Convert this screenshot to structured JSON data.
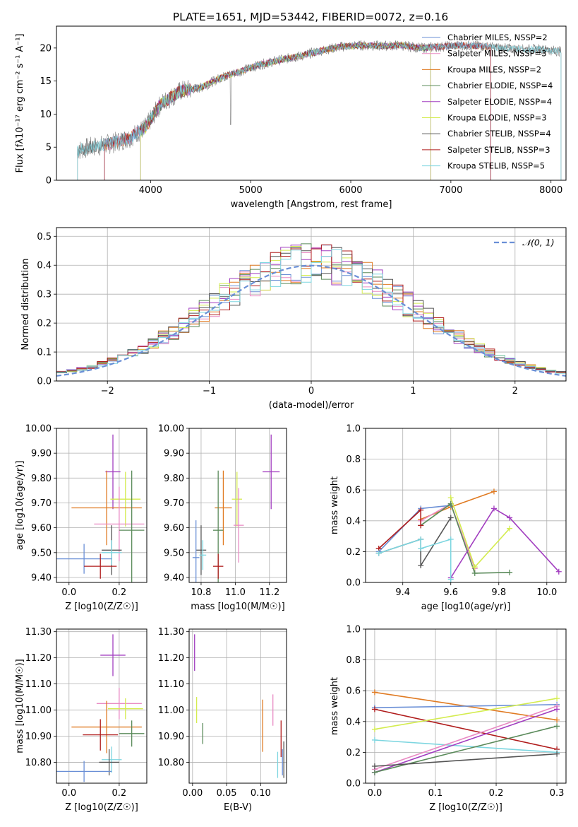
{
  "title": "PLATE=1651, MJD=53442, FIBERID=0072, z=0.16",
  "colors": {
    "chabrier_miles": "#6a8fd6",
    "salpeter_miles": "#e98bc4",
    "kroupa_miles": "#e07b23",
    "chabrier_elodie": "#5a8a5a",
    "salpeter_elodie": "#a23ec0",
    "kroupa_elodie": "#d4ec4f",
    "chabrier_stelib": "#555555",
    "salpeter_stelib": "#b01c1c",
    "kroupa_stelib": "#7dd6e0"
  },
  "chart_data": [
    {
      "id": "spectrum",
      "type": "line",
      "xlabel": "wavelength [Angstrom, rest frame]",
      "ylabel": "Flux [fλ10⁻¹⁷ erg cm⁻² s⁻¹ A⁻¹]",
      "xlim": [
        3060,
        8150
      ],
      "ylim": [
        0,
        23.3
      ],
      "xticks": [
        4000,
        5000,
        6000,
        7000,
        8000
      ],
      "yticks": [
        0,
        5,
        10,
        15,
        20
      ],
      "legend_position": "right",
      "legend": [
        {
          "label": "Chabrier MILES, NSSP=2",
          "color_key": "chabrier_miles"
        },
        {
          "label": "Salpeter MILES, NSSP=3",
          "color_key": "salpeter_miles"
        },
        {
          "label": "Kroupa MILES, NSSP=2",
          "color_key": "kroupa_miles"
        },
        {
          "label": "Chabrier ELODIE, NSSP=4",
          "color_key": "chabrier_elodie"
        },
        {
          "label": "Salpeter ELODIE, NSSP=4",
          "color_key": "salpeter_elodie"
        },
        {
          "label": "Kroupa ELODIE, NSSP=3",
          "color_key": "kroupa_elodie"
        },
        {
          "label": "Chabrier STELIB, NSSP=4",
          "color_key": "chabrier_stelib"
        },
        {
          "label": "Salpeter STELIB, NSSP=3",
          "color_key": "salpeter_stelib"
        },
        {
          "label": "Kroupa STELIB, NSSP=5",
          "color_key": "kroupa_stelib"
        }
      ],
      "continuum": [
        [
          3270,
          4.5
        ],
        [
          3400,
          5.0
        ],
        [
          3600,
          5.5
        ],
        [
          3800,
          6.5
        ],
        [
          3950,
          8.0
        ],
        [
          4100,
          11.5
        ],
        [
          4300,
          13.5
        ],
        [
          4500,
          14.0
        ],
        [
          4700,
          15.5
        ],
        [
          4900,
          16.5
        ],
        [
          5100,
          17.5
        ],
        [
          5300,
          18.2
        ],
        [
          5500,
          18.8
        ],
        [
          5700,
          19.6
        ],
        [
          5900,
          20.2
        ],
        [
          6100,
          20.4
        ],
        [
          6300,
          20.3
        ],
        [
          6500,
          20.4
        ],
        [
          6700,
          20.0
        ],
        [
          6900,
          20.2
        ],
        [
          7100,
          20.4
        ],
        [
          7300,
          20.3
        ],
        [
          7500,
          20.0
        ],
        [
          7700,
          19.8
        ],
        [
          7900,
          19.8
        ],
        [
          8100,
          19.5
        ]
      ],
      "spectrum_range": [
        3270,
        8100
      ],
      "model_ranges": [
        {
          "series": "kroupa_miles",
          "range": [
            3540,
            7400
          ]
        },
        {
          "series": "salpeter_miles",
          "range": [
            3540,
            7400
          ]
        },
        {
          "series": "chabrier_miles",
          "range": [
            3540,
            7400
          ]
        },
        {
          "series": "chabrier_elodie",
          "range": [
            3900,
            6800
          ]
        },
        {
          "series": "salpeter_elodie",
          "range": [
            3900,
            6800
          ]
        },
        {
          "series": "kroupa_elodie",
          "range": [
            3900,
            6800
          ]
        },
        {
          "series": "chabrier_stelib",
          "range": [
            3270,
            8100
          ]
        },
        {
          "series": "salpeter_stelib",
          "range": [
            3540,
            7400
          ]
        },
        {
          "series": "kroupa_stelib",
          "range": [
            3270,
            8100
          ]
        }
      ]
    },
    {
      "id": "residuals",
      "type": "line",
      "xlabel": "(data-model)/error",
      "ylabel": "Normed distribution",
      "xlim": [
        -2.5,
        2.5
      ],
      "ylim": [
        0,
        0.53
      ],
      "xticks": [
        -2,
        -1,
        0,
        1,
        2
      ],
      "yticks": [
        0.0,
        0.1,
        0.2,
        0.3,
        0.4,
        0.5
      ],
      "grid": true,
      "legend_position": "top-right",
      "legend": [
        {
          "label": "𝒩(0, 1)",
          "style": "dashed",
          "color_key": "chabrier_miles"
        }
      ],
      "bin_width": 0.1,
      "gaussian": {
        "mean": 0,
        "sigma": 1
      }
    },
    {
      "id": "age_vs_Z",
      "type": "scatter",
      "xlabel": "Z [log10(Z/Z☉)]",
      "ylabel": "age [log10(age/yr)]",
      "xlim": [
        -0.05,
        0.31
      ],
      "ylim": [
        9.38,
        10.0
      ],
      "xticks": [
        0.0,
        0.2
      ],
      "yticks": [
        9.4,
        9.5,
        9.6,
        9.7,
        9.8,
        9.9,
        10.0
      ],
      "grid": true,
      "points": [
        {
          "series": "salpeter_elodie",
          "x": 0.175,
          "y": 9.825,
          "xerr": 0.03,
          "yerr": 0.15
        },
        {
          "series": "kroupa_elodie",
          "x": 0.225,
          "y": 9.715,
          "xerr": 0.06,
          "yerr": 0.11
        },
        {
          "series": "kroupa_miles",
          "x": 0.15,
          "y": 9.68,
          "xerr": 0.14,
          "yerr": 0.15
        },
        {
          "series": "salpeter_miles",
          "x": 0.2,
          "y": 9.615,
          "xerr": 0.1,
          "yerr": 0.15
        },
        {
          "series": "chabrier_elodie",
          "x": 0.25,
          "y": 9.59,
          "xerr": 0.05,
          "yerr": 0.24
        },
        {
          "series": "chabrier_stelib",
          "x": 0.17,
          "y": 9.51,
          "xerr": 0.04,
          "yerr": 0.1
        },
        {
          "series": "kroupa_stelib",
          "x": 0.17,
          "y": 9.5,
          "xerr": 0.04,
          "yerr": 0.05
        },
        {
          "series": "chabrier_miles",
          "x": 0.06,
          "y": 9.475,
          "xerr": 0.11,
          "yerr": 0.06
        },
        {
          "series": "salpeter_stelib",
          "x": 0.125,
          "y": 9.445,
          "xerr": 0.065,
          "yerr": 0.05
        }
      ]
    },
    {
      "id": "age_vs_mass",
      "type": "scatter",
      "xlabel": "mass [log10(M/M☉)]",
      "ylabel": "",
      "xlim": [
        10.73,
        11.3
      ],
      "ylim": [
        9.38,
        10.0
      ],
      "xticks": [
        10.8,
        11.0,
        11.2
      ],
      "yticks": [
        9.4,
        9.5,
        9.6,
        9.7,
        9.8,
        9.9,
        10.0
      ],
      "grid": true,
      "points": [
        {
          "series": "salpeter_elodie",
          "x": 11.21,
          "y": 9.825,
          "xerr": 0.05,
          "yerr": 0.15
        },
        {
          "series": "kroupa_elodie",
          "x": 11.01,
          "y": 9.715,
          "xerr": 0.03,
          "yerr": 0.11
        },
        {
          "series": "kroupa_miles",
          "x": 10.93,
          "y": 9.68,
          "xerr": 0.05,
          "yerr": 0.15
        },
        {
          "series": "salpeter_miles",
          "x": 11.02,
          "y": 9.61,
          "xerr": 0.03,
          "yerr": 0.15
        },
        {
          "series": "chabrier_elodie",
          "x": 10.9,
          "y": 9.59,
          "xerr": 0.03,
          "yerr": 0.24
        },
        {
          "series": "chabrier_stelib",
          "x": 10.8,
          "y": 9.51,
          "xerr": 0.03,
          "yerr": 0.1
        },
        {
          "series": "kroupa_stelib",
          "x": 10.81,
          "y": 9.49,
          "xerr": 0.02,
          "yerr": 0.06
        },
        {
          "series": "chabrier_miles",
          "x": 10.77,
          "y": 9.48,
          "xerr": 0.02,
          "yerr": 0.15
        },
        {
          "series": "salpeter_stelib",
          "x": 10.9,
          "y": 9.445,
          "xerr": 0.03,
          "yerr": 0.05
        }
      ]
    },
    {
      "id": "weight_vs_age",
      "type": "line",
      "xlabel": "age [log10(age/yr)]",
      "ylabel": "mass weight",
      "xlim": [
        9.245,
        10.08
      ],
      "ylim": [
        0,
        1.0
      ],
      "xticks": [
        9.4,
        9.6,
        9.8,
        10.0
      ],
      "yticks": [
        0.0,
        0.2,
        0.4,
        0.6,
        0.8,
        1.0
      ],
      "grid": true,
      "series": [
        {
          "key": "kroupa_miles",
          "x": [
            9.475,
            9.6,
            9.78
          ],
          "y": [
            0.41,
            0.49,
            0.59
          ]
        },
        {
          "key": "salpeter_miles",
          "x": [
            9.475,
            9.6,
            9.7
          ],
          "y": [
            0.4,
            0.51,
            0.09
          ]
        },
        {
          "key": "chabrier_miles",
          "x": [
            9.3,
            9.475,
            9.6
          ],
          "y": [
            0.2,
            0.48,
            0.5
          ]
        },
        {
          "key": "chabrier_elodie",
          "x": [
            9.475,
            9.6,
            9.7,
            9.845
          ],
          "y": [
            0.37,
            0.51,
            0.06,
            0.065
          ]
        },
        {
          "key": "salpeter_elodie",
          "x": [
            9.6,
            9.78,
            9.845,
            10.05
          ],
          "y": [
            0.03,
            0.48,
            0.42,
            0.07
          ]
        },
        {
          "key": "kroupa_elodie",
          "x": [
            9.6,
            9.7,
            9.845
          ],
          "y": [
            0.55,
            0.1,
            0.35
          ]
        },
        {
          "key": "chabrier_stelib",
          "x": [
            9.3,
            9.475,
            9.475,
            9.6
          ],
          "y": [
            0.19,
            0.28,
            0.11,
            0.42
          ]
        },
        {
          "key": "salpeter_stelib",
          "x": [
            9.3,
            9.475,
            9.475
          ],
          "y": [
            0.22,
            0.47,
            0.37
          ]
        },
        {
          "key": "kroupa_stelib",
          "x": [
            9.3,
            9.475,
            9.475,
            9.6,
            9.6
          ],
          "y": [
            0.19,
            0.28,
            0.22,
            0.28,
            0.02
          ]
        }
      ]
    },
    {
      "id": "mass_vs_Z",
      "type": "scatter",
      "xlabel": "Z [log10(Z/Z☉)]",
      "ylabel": "mass [log10(M/M☉)]",
      "xlim": [
        -0.05,
        0.31
      ],
      "ylim": [
        10.72,
        11.31
      ],
      "xticks": [
        0.0,
        0.2
      ],
      "yticks": [
        10.8,
        10.9,
        11.0,
        11.1,
        11.2,
        11.3
      ],
      "grid": true,
      "points": [
        {
          "series": "salpeter_elodie",
          "x": 0.175,
          "y": 11.21,
          "xerr": 0.05,
          "yerr": 0.08
        },
        {
          "series": "salpeter_miles",
          "x": 0.2,
          "y": 11.025,
          "xerr": 0.09,
          "yerr": 0.06
        },
        {
          "series": "kroupa_elodie",
          "x": 0.225,
          "y": 11.005,
          "xerr": 0.07,
          "yerr": 0.04
        },
        {
          "series": "kroupa_miles",
          "x": 0.15,
          "y": 10.935,
          "xerr": 0.14,
          "yerr": 0.1
        },
        {
          "series": "salpeter_stelib",
          "x": 0.125,
          "y": 10.905,
          "xerr": 0.07,
          "yerr": 0.06
        },
        {
          "series": "chabrier_elodie",
          "x": 0.25,
          "y": 10.91,
          "xerr": 0.05,
          "yerr": 0.05
        },
        {
          "series": "kroupa_stelib",
          "x": 0.17,
          "y": 10.81,
          "xerr": 0.04,
          "yerr": 0.05
        },
        {
          "series": "chabrier_stelib",
          "x": 0.16,
          "y": 10.8,
          "xerr": 0.04,
          "yerr": 0.05
        },
        {
          "series": "chabrier_miles",
          "x": 0.06,
          "y": 10.765,
          "xerr": 0.11,
          "yerr": 0.04
        }
      ]
    },
    {
      "id": "mass_vs_ebv",
      "type": "scatter",
      "xlabel": "E(B-V)",
      "ylabel": "",
      "xlim": [
        -0.005,
        0.138
      ],
      "ylim": [
        10.72,
        11.31
      ],
      "xticks": [
        0.0,
        0.05,
        0.1
      ],
      "yticks": [
        10.8,
        10.9,
        11.0,
        11.1,
        11.2,
        11.3
      ],
      "grid": true,
      "points": [
        {
          "series": "salpeter_elodie",
          "x": 0.003,
          "y": 11.22,
          "xerr": 0.0,
          "yerr": 0.07
        },
        {
          "series": "kroupa_elodie",
          "x": 0.006,
          "y": 11.0,
          "xerr": 0.0,
          "yerr": 0.05
        },
        {
          "series": "chabrier_elodie",
          "x": 0.015,
          "y": 10.91,
          "xerr": 0.0,
          "yerr": 0.04
        },
        {
          "series": "kroupa_miles",
          "x": 0.103,
          "y": 10.94,
          "xerr": 0.0,
          "yerr": 0.1
        },
        {
          "series": "salpeter_miles",
          "x": 0.118,
          "y": 11.0,
          "xerr": 0.0,
          "yerr": 0.06
        },
        {
          "series": "salpeter_stelib",
          "x": 0.13,
          "y": 10.89,
          "xerr": 0.0,
          "yerr": 0.07
        },
        {
          "series": "kroupa_stelib",
          "x": 0.125,
          "y": 10.79,
          "xerr": 0.0,
          "yerr": 0.05
        },
        {
          "series": "chabrier_miles",
          "x": 0.132,
          "y": 10.8,
          "xerr": 0.0,
          "yerr": 0.05
        },
        {
          "series": "chabrier_stelib",
          "x": 0.134,
          "y": 10.81,
          "xerr": 0.0,
          "yerr": 0.07
        }
      ]
    },
    {
      "id": "weight_vs_Z",
      "type": "line",
      "xlabel": "Z [log10(Z/Z☉)]",
      "ylabel": "mass weight",
      "xlim": [
        -0.015,
        0.315
      ],
      "ylim": [
        0,
        1.0
      ],
      "xticks": [
        0.0,
        0.1,
        0.2,
        0.3
      ],
      "yticks": [
        0.0,
        0.2,
        0.4,
        0.6,
        0.8,
        1.0
      ],
      "grid": true,
      "series": [
        {
          "key": "kroupa_miles",
          "x": [
            0.0,
            0.3
          ],
          "y": [
            0.59,
            0.41
          ]
        },
        {
          "key": "chabrier_miles",
          "x": [
            0.0,
            0.3
          ],
          "y": [
            0.49,
            0.51
          ]
        },
        {
          "key": "salpeter_stelib",
          "x": [
            0.0,
            0.3
          ],
          "y": [
            0.48,
            0.22
          ]
        },
        {
          "key": "kroupa_elodie",
          "x": [
            0.0,
            0.3
          ],
          "y": [
            0.35,
            0.55
          ]
        },
        {
          "key": "kroupa_stelib",
          "x": [
            0.0,
            0.3
          ],
          "y": [
            0.28,
            0.2
          ]
        },
        {
          "key": "salpeter_miles",
          "x": [
            0.0,
            0.3
          ],
          "y": [
            0.09,
            0.5
          ]
        },
        {
          "key": "salpeter_elodie",
          "x": [
            0.0,
            0.3
          ],
          "y": [
            0.07,
            0.48
          ]
        },
        {
          "key": "chabrier_elodie",
          "x": [
            0.0,
            0.3
          ],
          "y": [
            0.07,
            0.37
          ]
        },
        {
          "key": "chabrier_stelib",
          "x": [
            0.0,
            0.3
          ],
          "y": [
            0.11,
            0.19
          ]
        }
      ]
    }
  ]
}
